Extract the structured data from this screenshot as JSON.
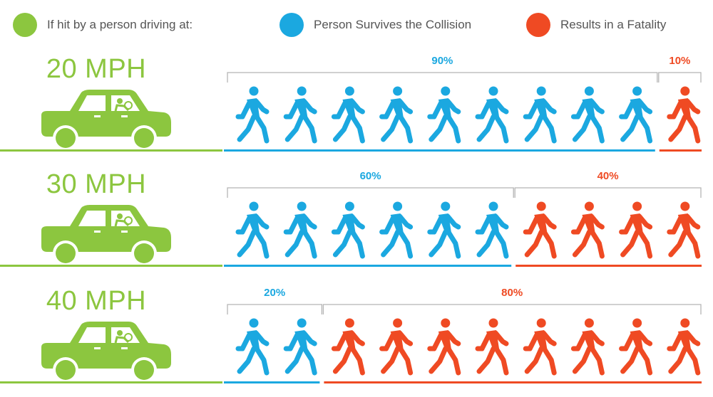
{
  "colors": {
    "green": "#8cc63f",
    "blue": "#1ba8e0",
    "red": "#ef4a23",
    "bracket": "#b5b5b5",
    "legend_text": "#555555"
  },
  "legend": {
    "speed_label": "If hit by a person driving at:",
    "survive_label": "Person Survives the Collision",
    "fatal_label": "Results in a Fatality"
  },
  "icons": {
    "car": "car-icon",
    "survivor": "walking-person-icon",
    "fatality": "walking-person-icon"
  },
  "chart_data": {
    "type": "bar",
    "categories": [
      "20 MPH",
      "30 MPH",
      "40 MPH"
    ],
    "series": [
      {
        "name": "Person Survives the Collision",
        "values": [
          90,
          60,
          20
        ],
        "labels": [
          "90%",
          "60%",
          "20%"
        ]
      },
      {
        "name": "Results in a Fatality",
        "values": [
          10,
          40,
          80
        ],
        "labels": [
          "10%",
          "40%",
          "80%"
        ]
      }
    ],
    "title": "",
    "xlabel": "",
    "ylabel": "",
    "unit": "%",
    "icons_per_row": 10
  }
}
